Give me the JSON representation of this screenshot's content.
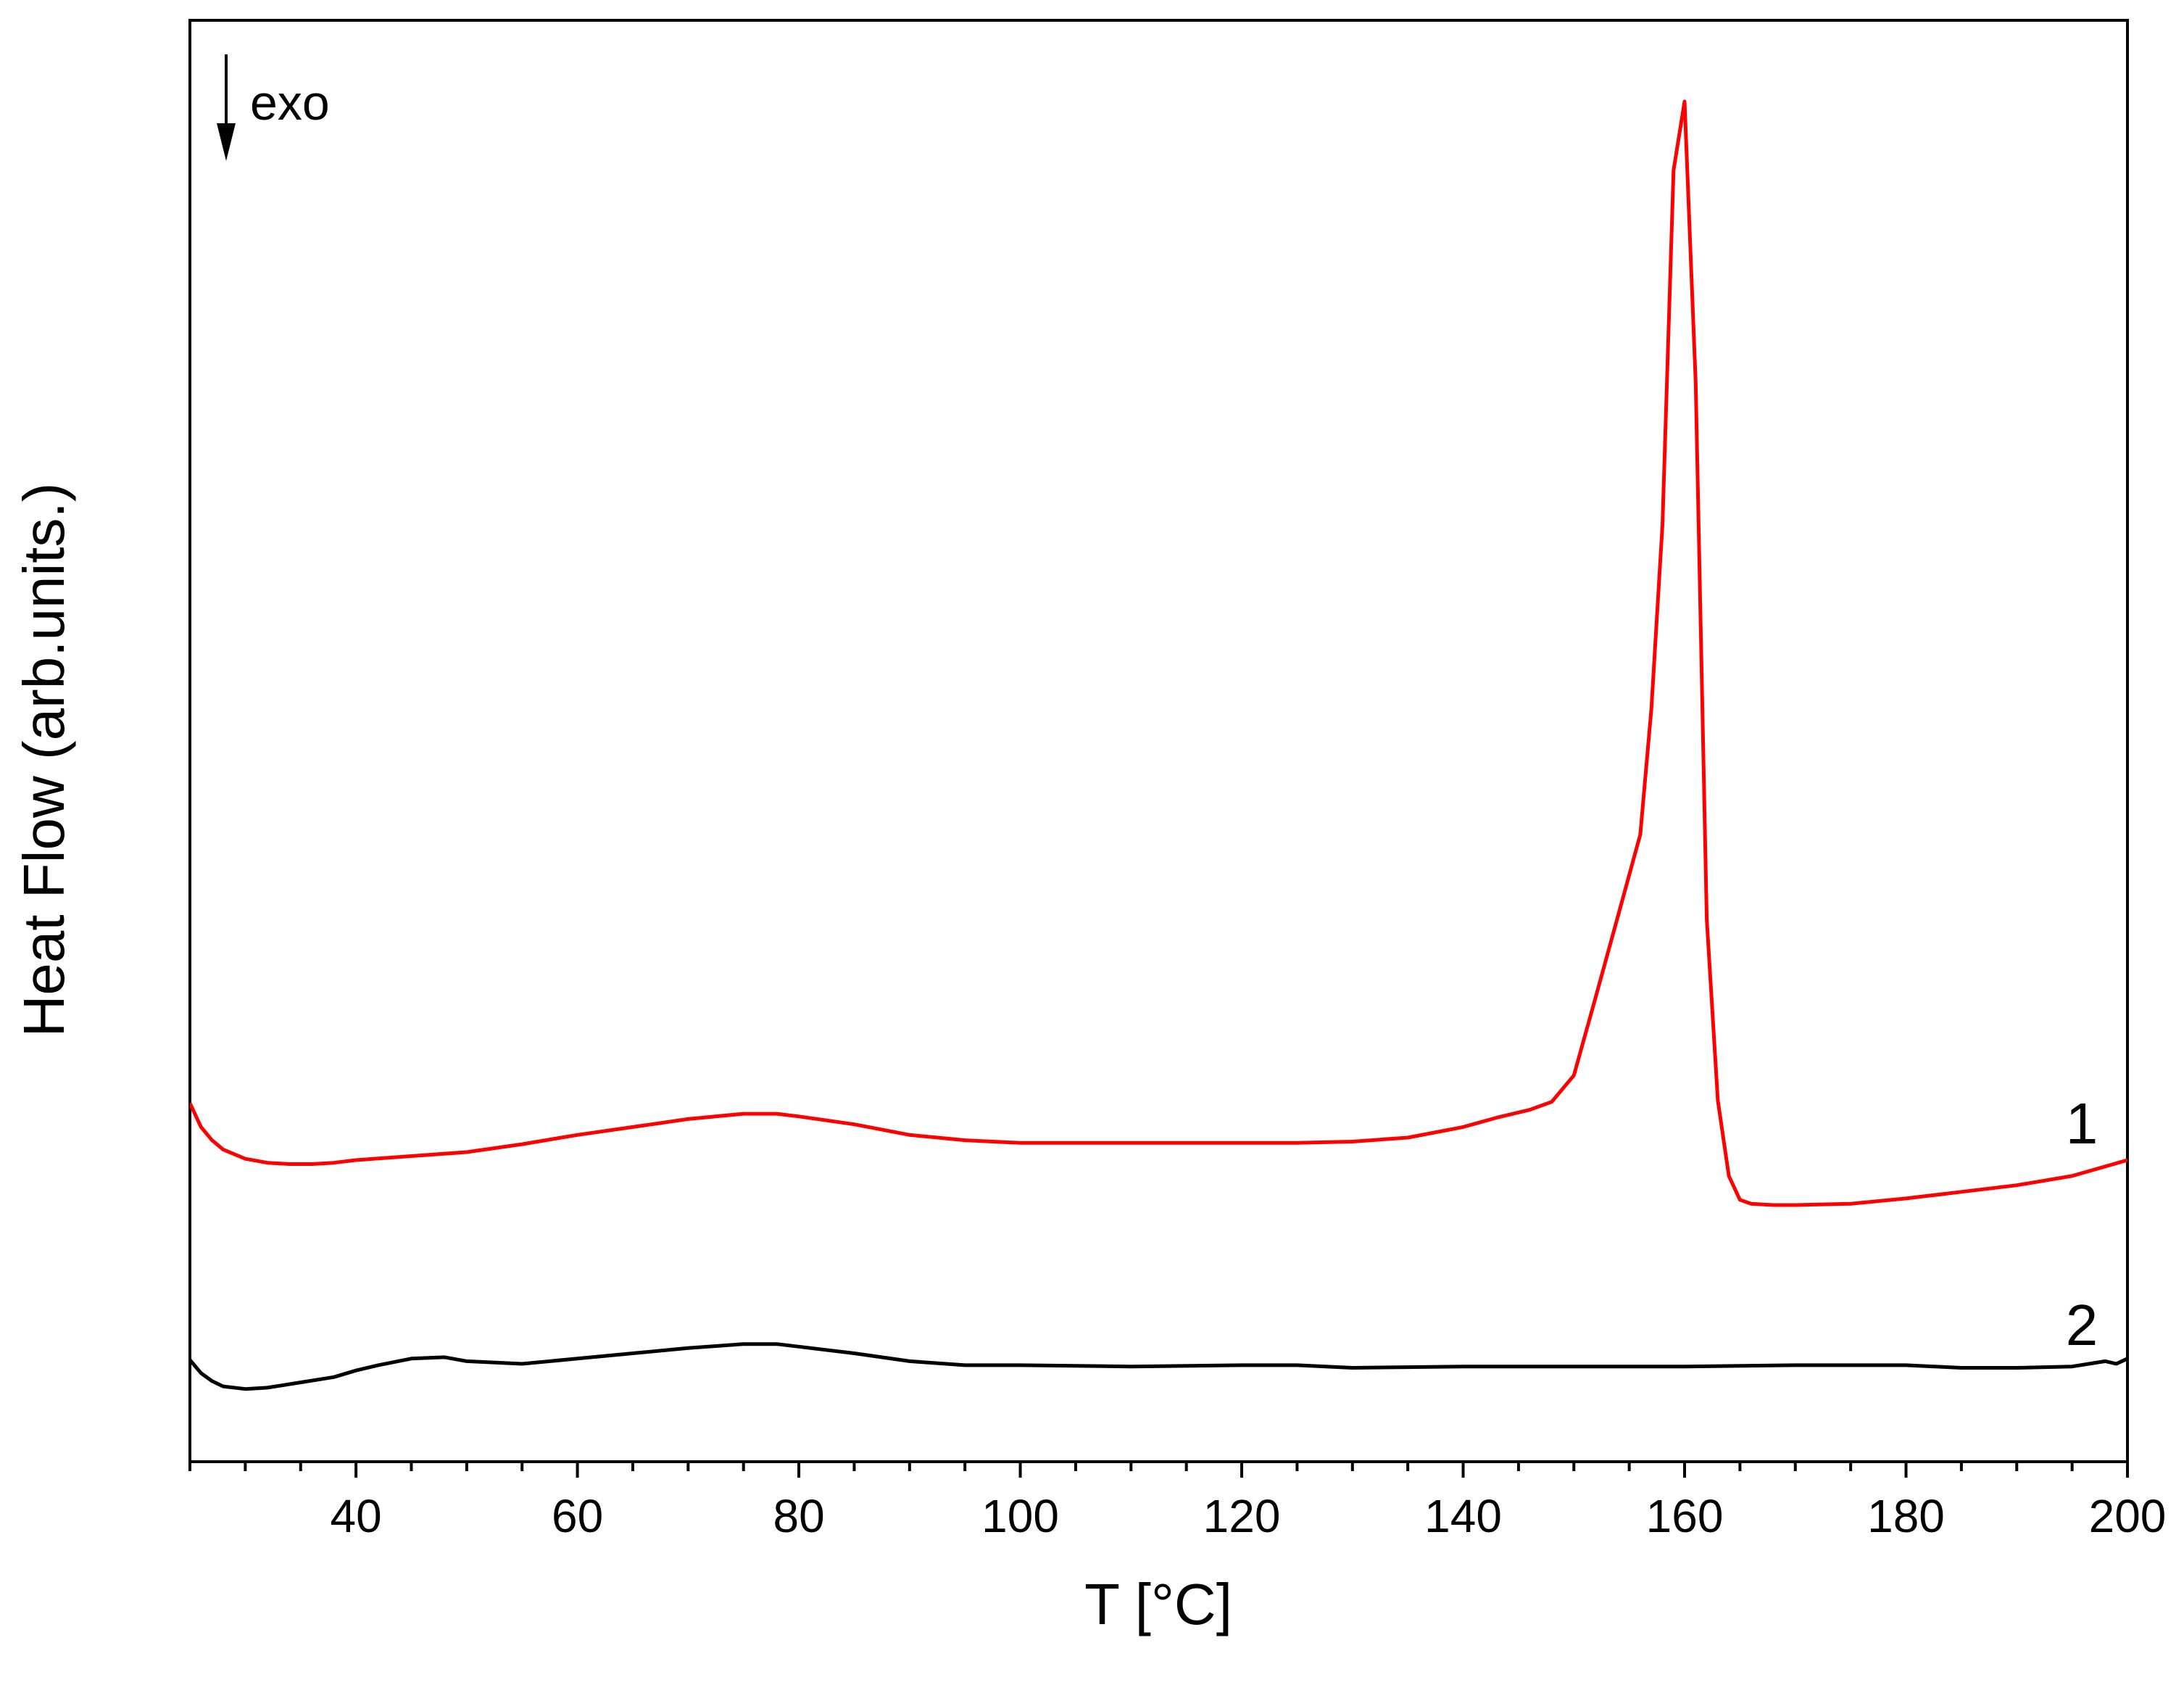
{
  "chart_data": {
    "type": "line",
    "title": "",
    "xlabel": "T [°C]",
    "ylabel": "Heat Flow (arb.units.)",
    "xlim": [
      25,
      200
    ],
    "ylim": [
      0,
      1
    ],
    "x_ticks": [
      40,
      60,
      80,
      100,
      120,
      140,
      160,
      180,
      200
    ],
    "x_tick_labels": [
      "40",
      "60",
      "80",
      "100",
      "120",
      "140",
      "160",
      "180",
      "200"
    ],
    "x_minor_step": 5,
    "y_ticks_shown": false,
    "grid": false,
    "annotation": {
      "text": "exo",
      "arrow": "down"
    },
    "series": [
      {
        "name": "1",
        "color": "#ff0000",
        "x": [
          25,
          26,
          27,
          28,
          30,
          32,
          34,
          36,
          38,
          40,
          45,
          50,
          55,
          60,
          65,
          70,
          75,
          78,
          80,
          85,
          90,
          95,
          100,
          105,
          110,
          115,
          120,
          125,
          130,
          135,
          140,
          143,
          146,
          148,
          150,
          152,
          154,
          156,
          157,
          158,
          159,
          160,
          161,
          162,
          163,
          164,
          165,
          166,
          168,
          170,
          175,
          180,
          185,
          190,
          195,
          200
        ],
        "y": [
          0.243,
          0.225,
          0.215,
          0.208,
          0.201,
          0.198,
          0.197,
          0.197,
          0.198,
          0.2,
          0.203,
          0.206,
          0.212,
          0.219,
          0.225,
          0.231,
          0.235,
          0.235,
          0.233,
          0.227,
          0.219,
          0.215,
          0.213,
          0.213,
          0.213,
          0.213,
          0.213,
          0.213,
          0.214,
          0.217,
          0.225,
          0.232,
          0.238,
          0.244,
          0.264,
          0.324,
          0.385,
          0.446,
          0.541,
          0.68,
          0.948,
          1.0,
          0.788,
          0.382,
          0.245,
          0.188,
          0.17,
          0.167,
          0.166,
          0.166,
          0.167,
          0.171,
          0.176,
          0.181,
          0.188,
          0.2
        ]
      },
      {
        "name": "2",
        "color": "#000000",
        "x": [
          25,
          26,
          27,
          28,
          30,
          32,
          35,
          38,
          40,
          42,
          45,
          48,
          50,
          55,
          60,
          65,
          70,
          75,
          78,
          80,
          85,
          90,
          95,
          100,
          110,
          120,
          125,
          130,
          140,
          150,
          160,
          170,
          175,
          180,
          185,
          190,
          195,
          198,
          199,
          200
        ],
        "y": [
          0.049,
          0.039,
          0.033,
          0.029,
          0.027,
          0.028,
          0.032,
          0.036,
          0.041,
          0.045,
          0.05,
          0.051,
          0.048,
          0.046,
          0.05,
          0.054,
          0.058,
          0.061,
          0.061,
          0.059,
          0.054,
          0.048,
          0.045,
          0.045,
          0.044,
          0.045,
          0.045,
          0.043,
          0.044,
          0.044,
          0.044,
          0.045,
          0.045,
          0.045,
          0.043,
          0.043,
          0.044,
          0.048,
          0.046,
          0.05
        ]
      }
    ]
  }
}
